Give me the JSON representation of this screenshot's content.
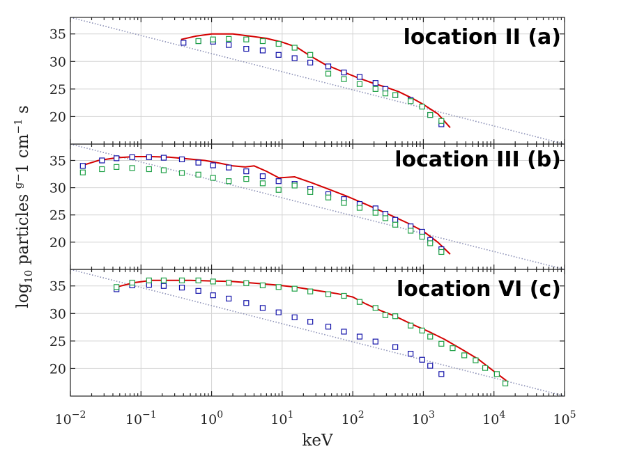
{
  "chart_data": {
    "type": "scatter",
    "xlabel": "keV",
    "ylabel": "log10 particles g−1 cm−1 s",
    "xscale": "log",
    "xlim": [
      0.01,
      100000
    ],
    "x_tick_labels": [
      "10−2",
      "10−1",
      "100",
      "101",
      "102",
      "103",
      "104",
      "105"
    ],
    "y_tick_labels": [
      "20",
      "25",
      "30",
      "35"
    ],
    "colors": {
      "model": "#d40000",
      "blue": "#1010a8",
      "green": "#1ea046",
      "reference": "#8a8fb5"
    },
    "panels": [
      {
        "title": "location II  (a)",
        "ylim": [
          15,
          38
        ],
        "yticks": [
          20,
          25,
          30,
          35
        ],
        "reference_line": [
          [
            0.01,
            38
          ],
          [
            100000,
            15
          ]
        ],
        "model_line": {
          "x": [
            0.37,
            0.6,
            1,
            2,
            3.5,
            6,
            10,
            16,
            25,
            40,
            70,
            120,
            200,
            300,
            450,
            700,
            1000,
            1600,
            2400
          ],
          "y": [
            34,
            34.6,
            35,
            35,
            34.6,
            34.2,
            33.5,
            32.6,
            31,
            29.5,
            28.2,
            27,
            26,
            25.3,
            24.5,
            23.3,
            22.2,
            20.5,
            18
          ]
        },
        "series": [
          {
            "name": "blue",
            "x": [
              0.4,
              0.65,
              1.05,
              1.75,
              3.1,
              5.3,
              8.9,
              15,
              25,
              45,
              75,
              125,
              210,
              290,
              400,
              660,
              1250,
              1800
            ],
            "y": [
              33.4,
              33.7,
              33.6,
              33,
              32.3,
              32,
              31.2,
              30.6,
              29.8,
              29.1,
              28,
              27.2,
              26.1,
              25,
              23.9,
              23,
              20.3,
              18.6
            ]
          },
          {
            "name": "green",
            "x": [
              0.65,
              1.05,
              1.75,
              3.1,
              5.3,
              8.9,
              15,
              25,
              45,
              75,
              125,
              210,
              290,
              400,
              660,
              960,
              1250,
              1800
            ],
            "y": [
              33.7,
              34,
              34.1,
              34,
              33.7,
              33.2,
              32.5,
              31.2,
              27.8,
              26.8,
              25.9,
              25,
              24.2,
              23.9,
              22.8,
              21.8,
              20.3,
              19.2
            ]
          }
        ]
      },
      {
        "title": "location III (b)",
        "ylim": [
          15,
          38
        ],
        "yticks": [
          20,
          25,
          30,
          35
        ],
        "reference_line": [
          [
            0.01,
            38
          ],
          [
            100000,
            15
          ]
        ],
        "model_line": {
          "x": [
            0.014,
            0.025,
            0.045,
            0.08,
            0.14,
            0.25,
            0.45,
            0.8,
            1.3,
            2,
            3,
            4,
            6,
            9,
            15,
            25,
            40,
            80,
            150,
            300,
            600,
            1000,
            1600,
            2400
          ],
          "y": [
            34,
            35,
            35.5,
            35.7,
            35.7,
            35.6,
            35.3,
            35,
            34.5,
            34,
            33.8,
            34,
            33,
            31.8,
            32,
            31,
            30,
            28.5,
            27,
            25.3,
            23.5,
            22,
            20,
            17.8
          ]
        },
        "series": [
          {
            "name": "blue",
            "x": [
              0.015,
              0.028,
              0.045,
              0.075,
              0.13,
              0.21,
              0.38,
              0.65,
              1.05,
              1.75,
              3.1,
              5.3,
              8.9,
              15,
              25,
              45,
              75,
              125,
              210,
              290,
              400,
              660,
              960,
              1250,
              1800
            ],
            "y": [
              34,
              35,
              35.4,
              35.6,
              35.6,
              35.5,
              35.2,
              34.6,
              34.1,
              33.7,
              33,
              32.1,
              31.2,
              30.7,
              29.8,
              28.8,
              27.9,
              27,
              26.2,
              25.2,
              24.1,
              22.9,
              21.9,
              20.4,
              18.7
            ]
          },
          {
            "name": "green",
            "x": [
              0.015,
              0.028,
              0.045,
              0.075,
              0.13,
              0.21,
              0.38,
              0.65,
              1.05,
              1.75,
              3.1,
              5.3,
              8.9,
              15,
              25,
              45,
              75,
              125,
              210,
              290,
              400,
              660,
              960,
              1250,
              1800
            ],
            "y": [
              32.8,
              33.4,
              33.8,
              33.6,
              33.4,
              33.2,
              32.7,
              32.4,
              31.8,
              31.2,
              31.6,
              30.8,
              29.6,
              30.4,
              29.2,
              28.2,
              27.2,
              26.3,
              25.4,
              24.4,
              23.2,
              22.1,
              21,
              19.8,
              18.2
            ]
          }
        ]
      },
      {
        "title": "location VI (c)",
        "ylim": [
          15,
          38
        ],
        "yticks": [
          20,
          25,
          30,
          35
        ],
        "reference_line": [
          [
            0.01,
            38
          ],
          [
            100000,
            15
          ]
        ],
        "model_line": {
          "x": [
            0.045,
            0.08,
            0.14,
            0.25,
            0.5,
            1,
            2,
            4,
            8,
            15,
            30,
            60,
            100,
            150,
            250,
            400,
            700,
            1200,
            2000,
            3500,
            6000,
            10000,
            15000
          ],
          "y": [
            34.8,
            35.6,
            36,
            36,
            36,
            35.9,
            35.8,
            35.5,
            35.2,
            34.8,
            34.2,
            33.6,
            33,
            31.8,
            30.5,
            29.5,
            28,
            26.7,
            25.3,
            23.5,
            21.7,
            19.5,
            17.8
          ]
        },
        "series": [
          {
            "name": "blue",
            "x": [
              0.045,
              0.075,
              0.13,
              0.21,
              0.38,
              0.65,
              1.05,
              1.75,
              3.1,
              5.3,
              8.9,
              15,
              25,
              45,
              75,
              125,
              210,
              400,
              660,
              960,
              1250,
              1800
            ],
            "y": [
              34.4,
              35.1,
              35.2,
              35,
              34.7,
              34.1,
              33.3,
              32.7,
              31.9,
              31,
              30.2,
              29.3,
              28.5,
              27.6,
              26.7,
              25.8,
              24.9,
              23.9,
              22.7,
              21.6,
              20.5,
              19
            ]
          },
          {
            "name": "green",
            "x": [
              0.045,
              0.075,
              0.13,
              0.21,
              0.38,
              0.65,
              1.05,
              1.75,
              3.1,
              5.3,
              8.9,
              15,
              25,
              45,
              75,
              125,
              210,
              290,
              400,
              660,
              960,
              1250,
              1800,
              2600,
              3800,
              5500,
              7500,
              11000,
              14500
            ],
            "y": [
              34.8,
              35.6,
              36,
              36,
              36,
              36,
              35.8,
              35.6,
              35.5,
              35.1,
              34.8,
              34.5,
              34,
              33.5,
              33.2,
              32.1,
              31,
              29.7,
              29.5,
              27.8,
              26.9,
              25.8,
              24.5,
              23.7,
              22.4,
              21.5,
              20.1,
              19,
              17.3
            ]
          }
        ]
      }
    ]
  }
}
